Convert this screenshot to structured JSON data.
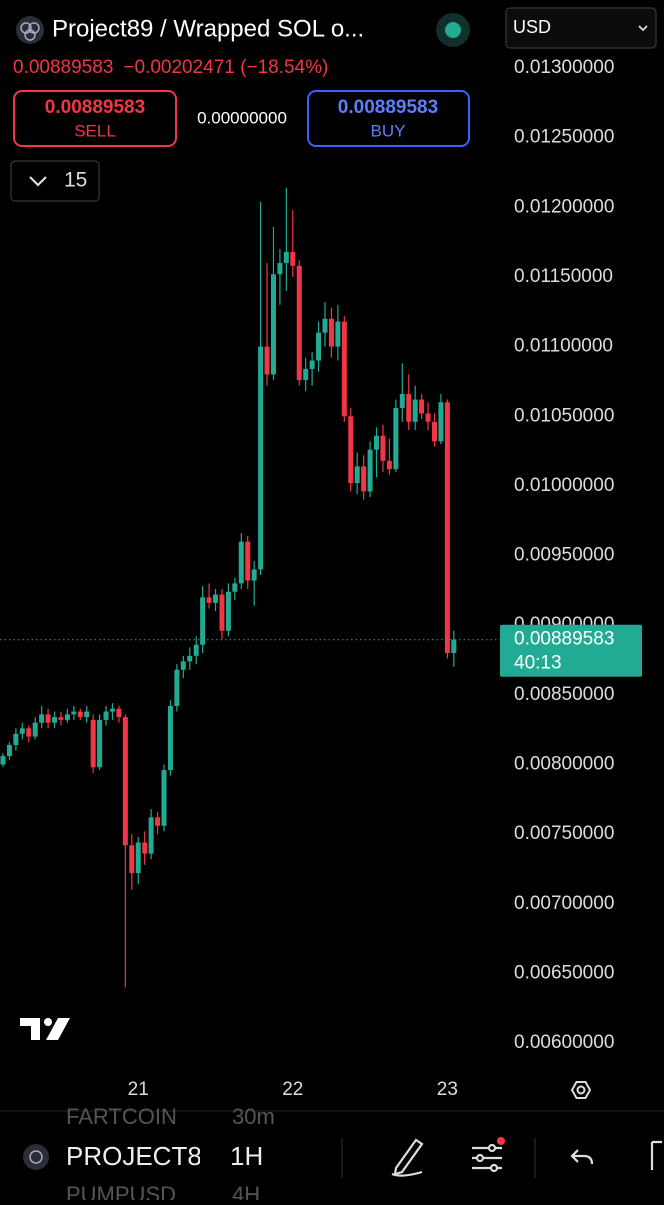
{
  "header": {
    "title": "Project89 / Wrapped SOL o...",
    "currency": "USD",
    "price": "0.00889583",
    "change": "−0.00202471 (−18.54%)"
  },
  "trade": {
    "sell_price": "0.00889583",
    "sell": "SELL",
    "spread": "0.00000000",
    "buy_price": "0.00889583",
    "buy": "BUY"
  },
  "interval": "15",
  "price_label": {
    "price": "0.00889583",
    "countdown": "40:13"
  },
  "chart_data": {
    "type": "candlestick",
    "categories": [
      null,
      null,
      null,
      null,
      null,
      null,
      null,
      null,
      null,
      null,
      null,
      null,
      null,
      null,
      null,
      null,
      null,
      null,
      null,
      null,
      null,
      "21",
      null,
      null,
      null,
      null,
      null,
      null,
      null,
      null,
      null,
      null,
      null,
      null,
      null,
      null,
      null,
      null,
      null,
      null,
      null,
      null,
      null,
      null,
      null,
      "22",
      null,
      null,
      null,
      null,
      null,
      null,
      null,
      null,
      null,
      null,
      null,
      null,
      null,
      null,
      null,
      null,
      null,
      null,
      null,
      null,
      null,
      null,
      null,
      "23",
      null
    ],
    "open": [
      0.008,
      0.00806,
      0.00814,
      0.00822,
      0.00826,
      0.0082,
      0.0083,
      0.00836,
      0.0083,
      0.00834,
      0.00832,
      0.00836,
      0.00838,
      0.00834,
      0.00832,
      0.00798,
      0.00832,
      0.00838,
      0.0084,
      0.00834,
      0.00742,
      0.00722,
      0.00744,
      0.00736,
      0.00762,
      0.00756,
      0.00796,
      0.00842,
      0.00868,
      0.00874,
      0.00878,
      0.00886,
      0.0092,
      0.00916,
      0.00922,
      0.00896,
      0.00924,
      0.0093,
      0.0096,
      0.00932,
      0.0094,
      0.011,
      0.0108,
      0.01152,
      0.0116,
      0.01168,
      0.01158,
      0.01076,
      0.01084,
      0.0109,
      0.0111,
      0.0112,
      0.011,
      0.01118,
      0.0105,
      0.01002,
      0.01014,
      0.00996,
      0.01026,
      0.01036,
      0.01018,
      0.01012,
      0.01056,
      0.01066,
      0.01046,
      0.01062,
      0.01052,
      0.01046,
      0.01032,
      0.0106,
      0.0088
    ],
    "high": [
      0.00808,
      0.00816,
      0.00826,
      0.0083,
      0.00828,
      0.00834,
      0.00842,
      0.0084,
      0.00838,
      0.00838,
      0.0084,
      0.00842,
      0.0084,
      0.00842,
      0.00836,
      0.00836,
      0.00842,
      0.00844,
      0.00842,
      0.00836,
      0.0075,
      0.00748,
      0.00752,
      0.00768,
      0.00766,
      0.008,
      0.00846,
      0.00872,
      0.00878,
      0.00884,
      0.00892,
      0.00928,
      0.0093,
      0.00926,
      0.00926,
      0.0093,
      0.00934,
      0.00966,
      0.00964,
      0.00946,
      0.01204,
      0.0116,
      0.01186,
      0.0117,
      0.01214,
      0.01198,
      0.01162,
      0.01092,
      0.01096,
      0.01118,
      0.01132,
      0.01128,
      0.0113,
      0.01122,
      0.01056,
      0.01024,
      0.01022,
      0.01032,
      0.01042,
      0.01044,
      0.01034,
      0.01062,
      0.01088,
      0.0108,
      0.01072,
      0.01066,
      0.0106,
      0.01052,
      0.01066,
      0.01062,
      0.00896
    ],
    "low": [
      0.00798,
      0.00803,
      0.0081,
      0.00818,
      0.00816,
      0.00818,
      0.00826,
      0.00826,
      0.00826,
      0.00828,
      0.0083,
      0.00832,
      0.00832,
      0.0083,
      0.00794,
      0.00796,
      0.00828,
      0.00832,
      0.0083,
      0.0064,
      0.0071,
      0.00714,
      0.00728,
      0.00732,
      0.0075,
      0.00752,
      0.00792,
      0.00838,
      0.00862,
      0.00868,
      0.00872,
      0.0088,
      0.00912,
      0.0091,
      0.0089,
      0.00892,
      0.00918,
      0.00926,
      0.00926,
      0.00914,
      0.00936,
      0.01072,
      0.01076,
      0.0113,
      0.0114,
      0.0115,
      0.01072,
      0.01068,
      0.01072,
      0.01082,
      0.011,
      0.01092,
      0.0109,
      0.01046,
      0.00996,
      0.00994,
      0.0099,
      0.00992,
      0.01006,
      0.0101,
      0.01008,
      0.0101,
      0.01046,
      0.0104,
      0.0104,
      0.01048,
      0.0104,
      0.01028,
      0.0103,
      0.00876,
      0.0087
    ],
    "close": [
      0.00806,
      0.00814,
      0.00822,
      0.00826,
      0.0082,
      0.0083,
      0.00836,
      0.0083,
      0.00834,
      0.00832,
      0.00836,
      0.00838,
      0.00834,
      0.00838,
      0.00798,
      0.00832,
      0.00838,
      0.0084,
      0.00834,
      0.00742,
      0.00722,
      0.00744,
      0.00736,
      0.00762,
      0.00756,
      0.00796,
      0.00842,
      0.00868,
      0.00874,
      0.00878,
      0.00886,
      0.0092,
      0.00916,
      0.00922,
      0.00896,
      0.00924,
      0.0093,
      0.0096,
      0.00932,
      0.0094,
      0.011,
      0.0108,
      0.01152,
      0.0116,
      0.01168,
      0.01158,
      0.01076,
      0.01084,
      0.0109,
      0.0111,
      0.0112,
      0.011,
      0.01118,
      0.0105,
      0.01002,
      0.01014,
      0.00996,
      0.01026,
      0.01036,
      0.01018,
      0.01012,
      0.01056,
      0.01066,
      0.01046,
      0.01062,
      0.01052,
      0.01046,
      0.01032,
      0.0106,
      0.0088,
      0.00889583
    ],
    "up_color": "#22ab94",
    "down_color": "#f23645",
    "ylim": [
      0.0058,
      0.0135
    ],
    "yticks": [
      {
        "value": 0.013,
        "label": "0.01300000"
      },
      {
        "value": 0.0125,
        "label": "0.01250000"
      },
      {
        "value": 0.012,
        "label": "0.01200000"
      },
      {
        "value": 0.0115,
        "label": "0.01150000"
      },
      {
        "value": 0.011,
        "label": "0.01100000"
      },
      {
        "value": 0.0105,
        "label": "0.01050000"
      },
      {
        "value": 0.01,
        "label": "0.01000000"
      },
      {
        "value": 0.0095,
        "label": "0.00950000"
      },
      {
        "value": 0.009,
        "label": "0.00900000"
      },
      {
        "value": 0.0085,
        "label": "0.00850000"
      },
      {
        "value": 0.008,
        "label": "0.00800000"
      },
      {
        "value": 0.0075,
        "label": "0.00750000"
      },
      {
        "value": 0.007,
        "label": "0.00700000"
      },
      {
        "value": 0.0065,
        "label": "0.00650000"
      },
      {
        "value": 0.006,
        "label": "0.00600000"
      }
    ],
    "grid": false
  },
  "toolbar": {
    "symbols": [
      {
        "name": "FARTCOIN",
        "interval": "30m"
      },
      {
        "name": "PROJECT8",
        "interval": "1H"
      },
      {
        "name": "PUMPUSD",
        "interval": "4H"
      }
    ]
  }
}
